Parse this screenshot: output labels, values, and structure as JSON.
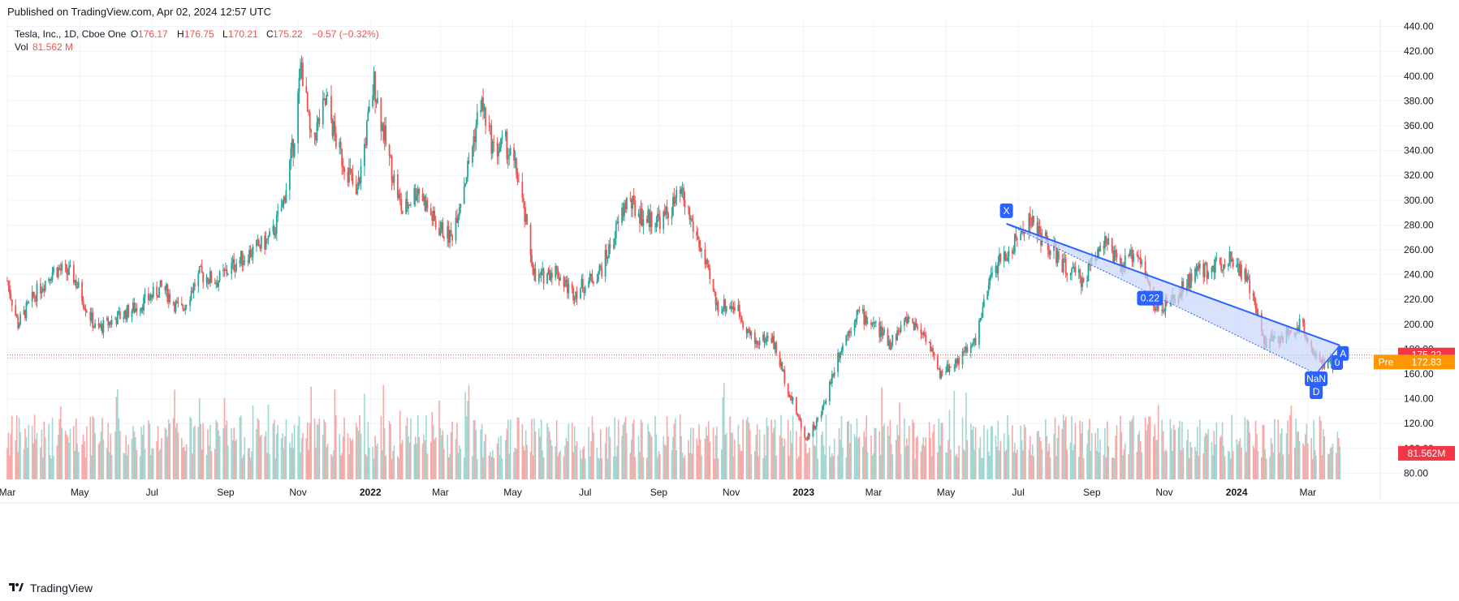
{
  "header": {
    "published": "Published on TradingView.com, Apr 02, 2024 12:57 UTC"
  },
  "legend": {
    "symbol": "Tesla, Inc., 1D, Cboe One",
    "o_label": "O",
    "o_value": "176.17",
    "h_label": "H",
    "h_value": "176.75",
    "l_label": "L",
    "l_value": "170.21",
    "c_label": "C",
    "c_value": "175.22",
    "change": "−0.57 (−0.32%)",
    "vol_label": "Vol",
    "vol_value": "81.562 M"
  },
  "footer": {
    "brand": "TradingView",
    "logo_icon": "tradingview-logo-icon"
  },
  "colors": {
    "up": "#26a69a",
    "down": "#ef5350",
    "up_vol": "#9fd7d2",
    "down_vol": "#f7a9a7",
    "pattern": "#2962ff",
    "pattern_fill": "#c9d6fc",
    "price_tag": "#f23645",
    "pre_tag": "#ff9800"
  },
  "chart_data": {
    "type": "candlestick",
    "title": "Tesla, Inc., 1D, Cboe One",
    "y_axis": {
      "ticks": [
        "440.00",
        "420.00",
        "400.00",
        "380.00",
        "360.00",
        "340.00",
        "320.00",
        "300.00",
        "280.00",
        "260.00",
        "240.00",
        "220.00",
        "200.00",
        "180.00",
        "160.00",
        "140.00",
        "120.00",
        "100.00",
        "80.00"
      ],
      "range": [
        75,
        445
      ],
      "position": "right"
    },
    "x_axis": {
      "tick_labels": [
        "Mar",
        "May",
        "Jul",
        "Sep",
        "Nov",
        "2022",
        "Mar",
        "May",
        "Jul",
        "Sep",
        "Nov",
        "2023",
        "Mar",
        "May",
        "Jul",
        "Sep",
        "Nov",
        "2024",
        "Mar"
      ],
      "bold_labels": [
        "2022",
        "2023",
        "2024"
      ],
      "tick_dates": [
        "2021-03-01",
        "2021-05-01",
        "2021-07-01",
        "2021-09-01",
        "2021-11-01",
        "2022-01-01",
        "2022-03-01",
        "2022-05-01",
        "2022-07-01",
        "2022-09-01",
        "2022-11-01",
        "2023-01-01",
        "2023-03-01",
        "2023-05-01",
        "2023-07-01",
        "2023-09-01",
        "2023-11-01",
        "2024-01-01",
        "2024-03-01"
      ],
      "range": [
        "2021-03-01",
        "2024-05-01"
      ]
    },
    "grid": true,
    "price_path": [
      [
        "2021-03-01",
        235
      ],
      [
        "2021-03-10",
        200
      ],
      [
        "2021-03-25",
        225
      ],
      [
        "2021-04-10",
        245
      ],
      [
        "2021-04-25",
        240
      ],
      [
        "2021-05-15",
        195
      ],
      [
        "2021-06-01",
        205
      ],
      [
        "2021-06-20",
        215
      ],
      [
        "2021-07-10",
        230
      ],
      [
        "2021-07-25",
        210
      ],
      [
        "2021-08-10",
        240
      ],
      [
        "2021-08-25",
        235
      ],
      [
        "2021-09-10",
        250
      ],
      [
        "2021-09-25",
        260
      ],
      [
        "2021-10-10",
        270
      ],
      [
        "2021-10-20",
        300
      ],
      [
        "2021-10-28",
        345
      ],
      [
        "2021-11-04",
        410
      ],
      [
        "2021-11-12",
        345
      ],
      [
        "2021-11-25",
        380
      ],
      [
        "2021-12-05",
        340
      ],
      [
        "2021-12-15",
        320
      ],
      [
        "2021-12-20",
        300
      ],
      [
        "2022-01-04",
        395
      ],
      [
        "2022-01-15",
        340
      ],
      [
        "2022-01-28",
        290
      ],
      [
        "2022-02-10",
        310
      ],
      [
        "2022-02-25",
        280
      ],
      [
        "2022-03-10",
        270
      ],
      [
        "2022-03-25",
        330
      ],
      [
        "2022-04-04",
        380
      ],
      [
        "2022-04-15",
        340
      ],
      [
        "2022-04-25",
        345
      ],
      [
        "2022-05-05",
        320
      ],
      [
        "2022-05-20",
        235
      ],
      [
        "2022-06-05",
        245
      ],
      [
        "2022-06-20",
        225
      ],
      [
        "2022-07-05",
        235
      ],
      [
        "2022-07-15",
        245
      ],
      [
        "2022-07-25",
        270
      ],
      [
        "2022-08-05",
        300
      ],
      [
        "2022-08-20",
        285
      ],
      [
        "2022-09-05",
        285
      ],
      [
        "2022-09-20",
        305
      ],
      [
        "2022-10-05",
        265
      ],
      [
        "2022-10-20",
        215
      ],
      [
        "2022-11-05",
        215
      ],
      [
        "2022-11-20",
        185
      ],
      [
        "2022-12-05",
        190
      ],
      [
        "2022-12-20",
        145
      ],
      [
        "2023-01-03",
        108
      ],
      [
        "2023-01-15",
        125
      ],
      [
        "2023-01-30",
        175
      ],
      [
        "2023-02-15",
        210
      ],
      [
        "2023-03-01",
        200
      ],
      [
        "2023-03-15",
        185
      ],
      [
        "2023-03-30",
        205
      ],
      [
        "2023-04-15",
        190
      ],
      [
        "2023-04-25",
        160
      ],
      [
        "2023-05-10",
        170
      ],
      [
        "2023-05-25",
        185
      ],
      [
        "2023-06-10",
        245
      ],
      [
        "2023-06-25",
        260
      ],
      [
        "2023-07-10",
        285
      ],
      [
        "2023-07-25",
        265
      ],
      [
        "2023-08-10",
        245
      ],
      [
        "2023-08-25",
        235
      ],
      [
        "2023-09-10",
        270
      ],
      [
        "2023-09-25",
        245
      ],
      [
        "2023-10-10",
        260
      ],
      [
        "2023-10-25",
        210
      ],
      [
        "2023-11-10",
        220
      ],
      [
        "2023-11-25",
        240
      ],
      [
        "2023-12-10",
        245
      ],
      [
        "2023-12-28",
        255
      ],
      [
        "2024-01-10",
        235
      ],
      [
        "2024-01-25",
        185
      ],
      [
        "2024-02-10",
        190
      ],
      [
        "2024-02-25",
        200
      ],
      [
        "2024-03-05",
        180
      ],
      [
        "2024-03-15",
        165
      ],
      [
        "2024-03-28",
        175
      ]
    ],
    "xabcd_pattern": {
      "points": {
        "X": [
          "2023-06-21",
          281
        ],
        "A": [
          "2024-03-28",
          183
        ],
        "D": [
          "2024-03-08",
          160
        ]
      },
      "labels": {
        "X": "X",
        "A": "A",
        "D": "D"
      },
      "ratios": {
        "XA_mid": "0.22",
        "A_D": "0",
        "D_bottom": "NaN"
      },
      "mid_label_at": [
        "2023-10-20",
        221
      ]
    },
    "price_lines": {
      "last": 175.22,
      "pre": 172.83
    },
    "last_price_tag": "175.22",
    "pre_label": "Pre",
    "pre_price_tag": "172.83",
    "volume_tag": "81.562M"
  }
}
